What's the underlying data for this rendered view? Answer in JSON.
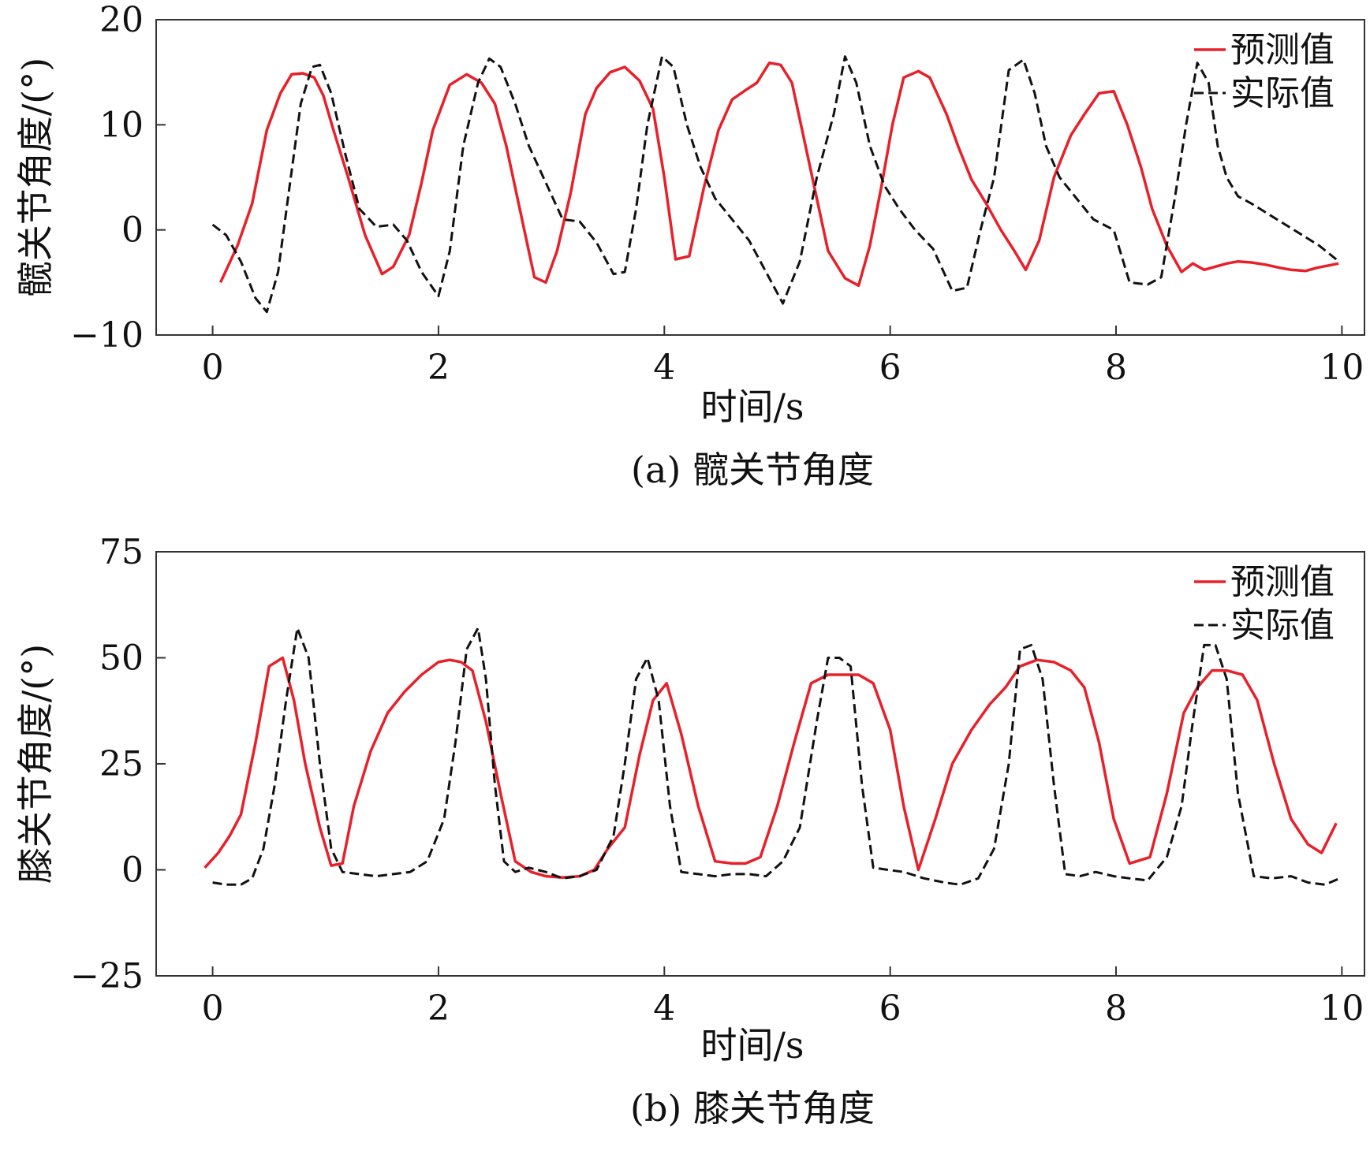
{
  "chart_data": [
    {
      "type": "line",
      "caption": "(a) 髋关节角度",
      "xlabel": "时间/s",
      "ylabel": "髋关节角度/(°)",
      "xlim": [
        -0.5,
        10.2
      ],
      "ylim": [
        -10,
        20
      ],
      "xticks": [
        0,
        2,
        4,
        6,
        8,
        10
      ],
      "yticks": [
        -10,
        0,
        10,
        20
      ],
      "xtick_labels": [
        "0",
        "2",
        "4",
        "6",
        "8",
        "10"
      ],
      "ytick_labels": [
        "−10",
        "0",
        "10",
        "20"
      ],
      "grid": false,
      "legend_position": "top-right",
      "series": [
        {
          "name": "预测值",
          "color": "#e8202a",
          "style": "solid",
          "x": [
            0.07,
            0.22,
            0.35,
            0.48,
            0.6,
            0.7,
            0.8,
            0.9,
            0.98,
            1.07,
            1.2,
            1.35,
            1.5,
            1.6,
            1.74,
            1.85,
            1.95,
            2.1,
            2.25,
            2.38,
            2.5,
            2.6,
            2.72,
            2.85,
            2.95,
            3.05,
            3.17,
            3.3,
            3.4,
            3.52,
            3.65,
            3.78,
            3.9,
            4.0,
            4.1,
            4.22,
            4.35,
            4.48,
            4.6,
            4.72,
            4.82,
            4.93,
            5.03,
            5.13,
            5.25,
            5.35,
            5.45,
            5.6,
            5.72,
            5.82,
            5.92,
            6.02,
            6.12,
            6.25,
            6.35,
            6.5,
            6.6,
            6.72,
            6.85,
            6.98,
            7.1,
            7.2,
            7.32,
            7.45,
            7.6,
            7.72,
            7.85,
            7.98,
            8.1,
            8.22,
            8.32,
            8.45,
            8.58,
            8.68,
            8.78,
            8.88,
            8.98,
            9.08,
            9.2,
            9.32,
            9.45,
            9.55,
            9.68,
            9.78,
            9.97
          ],
          "y": [
            -5,
            -1.5,
            2.5,
            9.5,
            13,
            14.8,
            14.9,
            14.5,
            12.8,
            9.5,
            5,
            -0.5,
            -4.2,
            -3.5,
            -0.5,
            4.5,
            9.5,
            13.8,
            14.8,
            14,
            12,
            8,
            2,
            -4.5,
            -5.0,
            -2,
            3.5,
            11,
            13.5,
            15,
            15.5,
            14.2,
            11.5,
            5,
            -2.8,
            -2.5,
            4,
            9.5,
            12.4,
            13.3,
            14,
            15.9,
            15.7,
            14,
            8,
            3,
            -2,
            -4.6,
            -5.3,
            -1.5,
            4,
            10,
            14.5,
            15.1,
            14.5,
            11,
            8,
            4.8,
            2.5,
            0,
            -2,
            -3.8,
            -1,
            5,
            9,
            11,
            13,
            13.2,
            10,
            6,
            2,
            -1.5,
            -4,
            -3.2,
            -3.8,
            -3.5,
            -3.2,
            -3.0,
            -3.1,
            -3.3,
            -3.6,
            -3.8,
            -3.9,
            -3.6,
            -3.2
          ]
        },
        {
          "name": "实际值",
          "color": "#111111",
          "style": "dashed",
          "x": [
            0.0,
            0.12,
            0.25,
            0.38,
            0.48,
            0.58,
            0.68,
            0.78,
            0.88,
            0.95,
            1.05,
            1.18,
            1.3,
            1.45,
            1.6,
            1.72,
            1.85,
            2.0,
            2.1,
            2.22,
            2.35,
            2.45,
            2.55,
            2.68,
            2.8,
            2.95,
            3.1,
            3.25,
            3.4,
            3.55,
            3.65,
            3.75,
            3.85,
            3.98,
            4.08,
            4.2,
            4.32,
            4.45,
            4.6,
            4.75,
            4.9,
            5.05,
            5.2,
            5.35,
            5.5,
            5.6,
            5.7,
            5.82,
            5.95,
            6.08,
            6.22,
            6.38,
            6.55,
            6.68,
            6.8,
            6.92,
            7.05,
            7.18,
            7.28,
            7.38,
            7.5,
            7.65,
            7.8,
            7.98,
            8.12,
            8.28,
            8.4,
            8.52,
            8.62,
            8.72,
            8.82,
            8.9,
            8.98,
            9.08,
            9.2,
            9.35,
            9.5,
            9.65,
            9.8,
            9.95
          ],
          "y": [
            0.5,
            -0.5,
            -3,
            -6.5,
            -7.8,
            -4,
            4,
            12,
            15.5,
            15.7,
            13,
            7,
            2,
            0.3,
            0.5,
            -1,
            -4,
            -6.3,
            -2,
            8,
            14,
            16.3,
            15.5,
            12,
            8,
            4.5,
            1,
            0.8,
            -1.2,
            -4.2,
            -4,
            2,
            10,
            16.5,
            15.5,
            10,
            6,
            3,
            1,
            -1,
            -4,
            -7,
            -3,
            5,
            11,
            16.5,
            14,
            8,
            4.2,
            2,
            0,
            -1.8,
            -5.8,
            -5.5,
            0,
            5,
            15.2,
            16.2,
            13,
            8,
            5,
            3,
            1,
            0,
            -5,
            -5.2,
            -4.5,
            3,
            10,
            15.9,
            14,
            8,
            5,
            3.2,
            2.5,
            1.5,
            0.5,
            -0.5,
            -1.5,
            -2.8
          ]
        }
      ]
    },
    {
      "type": "line",
      "caption": "(b) 膝关节角度",
      "xlabel": "时间/s",
      "ylabel": "膝关节角度/(°)",
      "xlim": [
        -0.5,
        10.2
      ],
      "ylim": [
        -25,
        75
      ],
      "xticks": [
        0,
        2,
        4,
        6,
        8,
        10
      ],
      "yticks": [
        -25,
        0,
        25,
        50,
        75
      ],
      "xtick_labels": [
        "0",
        "2",
        "4",
        "6",
        "8",
        "10"
      ],
      "ytick_labels": [
        "−25",
        "0",
        "25",
        "50",
        "75"
      ],
      "grid": false,
      "legend_position": "top-right",
      "series": [
        {
          "name": "预测值",
          "color": "#e8202a",
          "style": "solid",
          "x": [
            -0.07,
            0.05,
            0.15,
            0.25,
            0.38,
            0.5,
            0.62,
            0.72,
            0.82,
            0.95,
            1.05,
            1.15,
            1.25,
            1.4,
            1.55,
            1.7,
            1.85,
            2.0,
            2.1,
            2.2,
            2.3,
            2.42,
            2.55,
            2.68,
            2.82,
            2.95,
            3.1,
            3.25,
            3.38,
            3.5,
            3.65,
            3.78,
            3.9,
            4.02,
            4.15,
            4.3,
            4.45,
            4.6,
            4.72,
            4.85,
            5.0,
            5.15,
            5.3,
            5.45,
            5.6,
            5.72,
            5.85,
            6.0,
            6.12,
            6.25,
            6.4,
            6.55,
            6.72,
            6.88,
            7.02,
            7.15,
            7.3,
            7.45,
            7.6,
            7.72,
            7.85,
            7.98,
            8.12,
            8.3,
            8.45,
            8.6,
            8.72,
            8.85,
            8.98,
            9.12,
            9.25,
            9.4,
            9.55,
            9.7,
            9.82,
            9.95
          ],
          "y": [
            0.5,
            4,
            8,
            13,
            30,
            48,
            50,
            40,
            25,
            10,
            1,
            1.5,
            15,
            28,
            37,
            42,
            46,
            49,
            49.5,
            49,
            47,
            35,
            18,
            2,
            -0.5,
            -1.5,
            -1.8,
            -1.5,
            0,
            5,
            10,
            27,
            40,
            44,
            32,
            15,
            2,
            1.5,
            1.5,
            3,
            15,
            30,
            44,
            46,
            46,
            46,
            44,
            33,
            15,
            0,
            12,
            25,
            33,
            39,
            43,
            48,
            49.5,
            49,
            47,
            43,
            30,
            12,
            1.5,
            3,
            18,
            37,
            43,
            47,
            47,
            46,
            40,
            25,
            12,
            6,
            4,
            11
          ]
        },
        {
          "name": "实际值",
          "color": "#111111",
          "style": "dashed",
          "x": [
            0.0,
            0.12,
            0.25,
            0.35,
            0.45,
            0.55,
            0.65,
            0.75,
            0.85,
            0.95,
            1.05,
            1.15,
            1.3,
            1.45,
            1.6,
            1.75,
            1.9,
            2.05,
            2.15,
            2.25,
            2.35,
            2.42,
            2.5,
            2.58,
            2.68,
            2.8,
            2.95,
            3.1,
            3.25,
            3.4,
            3.55,
            3.65,
            3.75,
            3.85,
            3.95,
            4.05,
            4.15,
            4.3,
            4.45,
            4.6,
            4.75,
            4.9,
            5.05,
            5.2,
            5.35,
            5.45,
            5.55,
            5.65,
            5.75,
            5.85,
            5.98,
            6.12,
            6.3,
            6.48,
            6.62,
            6.78,
            6.92,
            7.05,
            7.15,
            7.25,
            7.35,
            7.45,
            7.55,
            7.68,
            7.82,
            7.98,
            8.12,
            8.28,
            8.45,
            8.58,
            8.68,
            8.78,
            8.88,
            8.98,
            9.08,
            9.22,
            9.38,
            9.55,
            9.7,
            9.85,
            9.98
          ],
          "y": [
            -3,
            -3.5,
            -3.5,
            -2,
            5,
            20,
            40,
            57,
            50,
            25,
            5,
            -0.5,
            -1,
            -1.5,
            -1,
            -0.5,
            2,
            12,
            30,
            52,
            57,
            45,
            20,
            2,
            -0.5,
            0.5,
            -0.5,
            -2,
            -1.5,
            0,
            8,
            25,
            45,
            50,
            40,
            15,
            -0.5,
            -1,
            -1.5,
            -1,
            -1,
            -1.5,
            2,
            10,
            35,
            50,
            50,
            48,
            20,
            0.5,
            0,
            -0.5,
            -2,
            -3,
            -3.5,
            -2,
            5,
            25,
            52,
            53,
            45,
            20,
            -1,
            -1.5,
            -0.5,
            -1.5,
            -2,
            -2.5,
            3,
            15,
            35,
            53,
            53,
            45,
            18,
            -1.5,
            -2,
            -1.5,
            -3,
            -3.5,
            -2
          ]
        }
      ]
    }
  ]
}
